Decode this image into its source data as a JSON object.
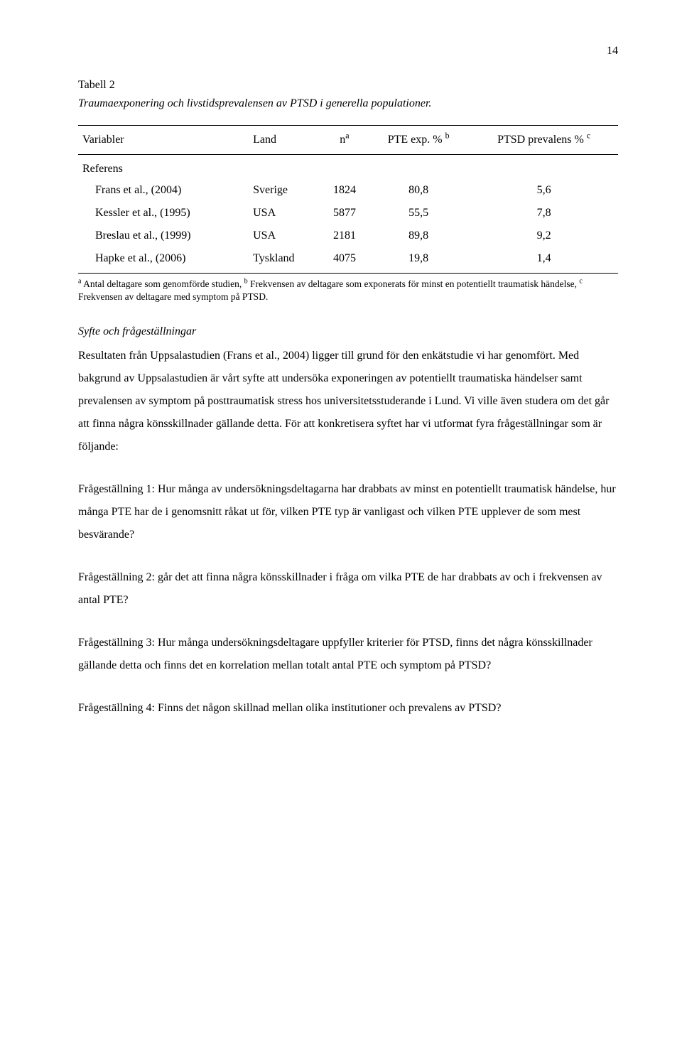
{
  "page_number": "14",
  "table": {
    "label": "Tabell 2",
    "caption": "Traumaexponering och livstidsprevalensen av PTSD i generella populationer.",
    "headers": {
      "variabler": "Variabler",
      "land": "Land",
      "n": "n",
      "n_sup": "a",
      "pte": "PTE exp. %",
      "pte_sup": "b",
      "prev": "PTSD prevalens %",
      "prev_sup": "c"
    },
    "referens_label": "Referens",
    "rows": [
      {
        "ref": "Frans et al., (2004)",
        "land": "Sverige",
        "n": "1824",
        "pte": "80,8",
        "prev": "5,6"
      },
      {
        "ref": "Kessler et al., (1995)",
        "land": "USA",
        "n": "5877",
        "pte": "55,5",
        "prev": "7,8"
      },
      {
        "ref": "Breslau et al., (1999)",
        "land": "USA",
        "n": "2181",
        "pte": "89,8",
        "prev": "9,2"
      },
      {
        "ref": "Hapke et al., (2006)",
        "land": "Tyskland",
        "n": "4075",
        "pte": "19,8",
        "prev": "1,4"
      }
    ],
    "footnote": {
      "a_sup": "a",
      "a_text": " Antal deltagare som genomförde studien, ",
      "b_sup": "b",
      "b_text": " Frekvensen av deltagare som exponerats för minst en potentiellt traumatisk händelse, ",
      "c_sup": "c",
      "c_text": " Frekvensen av deltagare med symptom på PTSD."
    }
  },
  "syfte": {
    "heading": "Syfte och frågeställningar",
    "body": "Resultaten från Uppsalastudien (Frans et al., 2004) ligger till grund för den enkätstudie vi har genomfört. Med bakgrund av Uppsalastudien är vårt syfte att undersöka exponeringen av potentiellt traumatiska händelser samt prevalensen av symptom på posttraumatisk stress hos universitetsstuderande i Lund. Vi ville även studera om det går att finna några könsskillnader gällande detta. För att konkretisera syftet har vi utformat fyra frågeställningar som är följande:"
  },
  "q1": "Frågeställning 1: Hur många av undersökningsdeltagarna har drabbats av minst en potentiellt traumatisk händelse, hur många PTE har de i genomsnitt råkat ut för, vilken PTE typ är vanligast och vilken PTE upplever de som mest besvärande?",
  "q2": "Frågeställning 2: går det att finna några könsskillnader i fråga om vilka PTE de har drabbats av och i frekvensen av antal PTE?",
  "q3": "Frågeställning 3: Hur många undersökningsdeltagare uppfyller kriterier för PTSD, finns det några könsskillnader gällande detta och finns det en korrelation mellan totalt antal PTE och symptom på PTSD?",
  "q4": "Frågeställning 4: Finns det någon skillnad mellan olika institutioner och prevalens av PTSD?"
}
